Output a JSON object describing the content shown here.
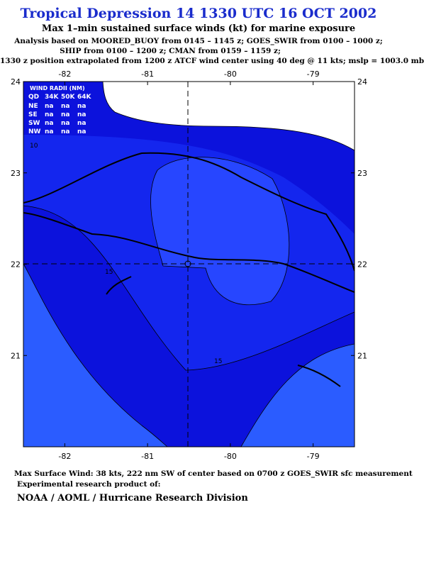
{
  "header": {
    "title": "Tropical Depression 14 1330 UTC 16 OCT 2002",
    "subtitle": "Max 1–min sustained surface winds (kt) for marine exposure",
    "lines": [
      "Analysis based on  MOORED_BUOY from 0145 – 1145 z;  GOES_SWIR from 0100 – 1000 z;",
      "SHIP from 0100 – 1200 z;  CMAN from 0159 – 1159 z;",
      "1330 z position extrapolated from 1200 z ATCF wind center using 40 deg @ 11 kts; mslp = 1003.0 mb"
    ]
  },
  "map": {
    "xlim": [
      -82.5,
      -78.5
    ],
    "ylim": [
      20,
      24
    ],
    "xticks": [
      -82,
      -81,
      -80,
      -79
    ],
    "yticks": [
      21,
      22,
      23,
      24
    ],
    "contour_labels": [
      "10",
      "15",
      "15"
    ],
    "wind_radii": {
      "title": "WIND RADII (NM)",
      "columns": [
        "QD",
        "34K",
        "50K",
        "64K"
      ],
      "rows": [
        [
          "NE",
          "na",
          "na",
          "na"
        ],
        [
          "SE",
          "na",
          "na",
          "na"
        ],
        [
          "SW",
          "na",
          "na",
          "na"
        ],
        [
          "NW",
          "na",
          "na",
          "na"
        ]
      ]
    }
  },
  "footer": {
    "max_wind": "Max Surface Wind: 38 kts, 222 nm SW of center based on 0700 z GOES_SWIR sfc measurement",
    "product": "Experimental research product of:",
    "org": "NOAA / AOML / Hurricane Research Division"
  }
}
